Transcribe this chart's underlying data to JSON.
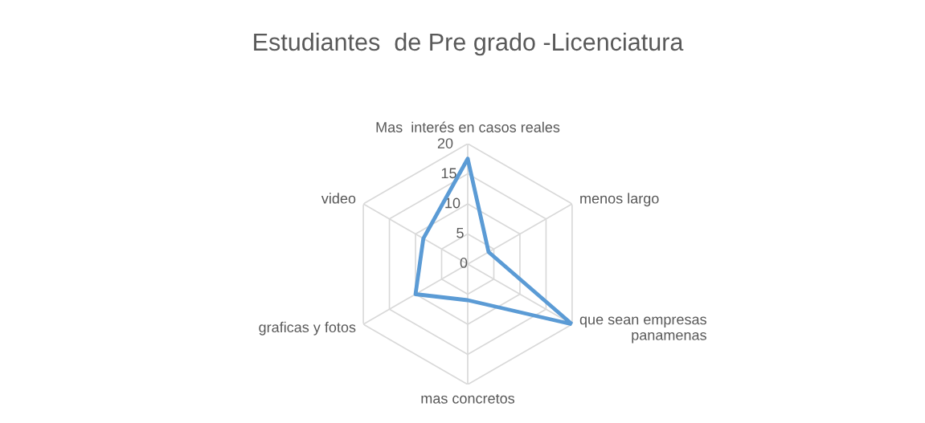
{
  "chart_data": {
    "type": "radar",
    "title": "Estudiantes  de Pre grado -Licenciatura",
    "categories": [
      "Mas  interés en casos reales",
      "menos largo",
      "que sean empresas\npanamenas",
      "mas concretos",
      "graficas y fotos",
      "video"
    ],
    "series": [
      {
        "color": "#5b9bd5",
        "values": [
          17.5,
          4,
          20,
          6,
          10,
          8.5
        ]
      }
    ],
    "ylim": [
      0,
      20
    ],
    "yticks": [
      0,
      5,
      10,
      15,
      20
    ],
    "grid": true
  }
}
